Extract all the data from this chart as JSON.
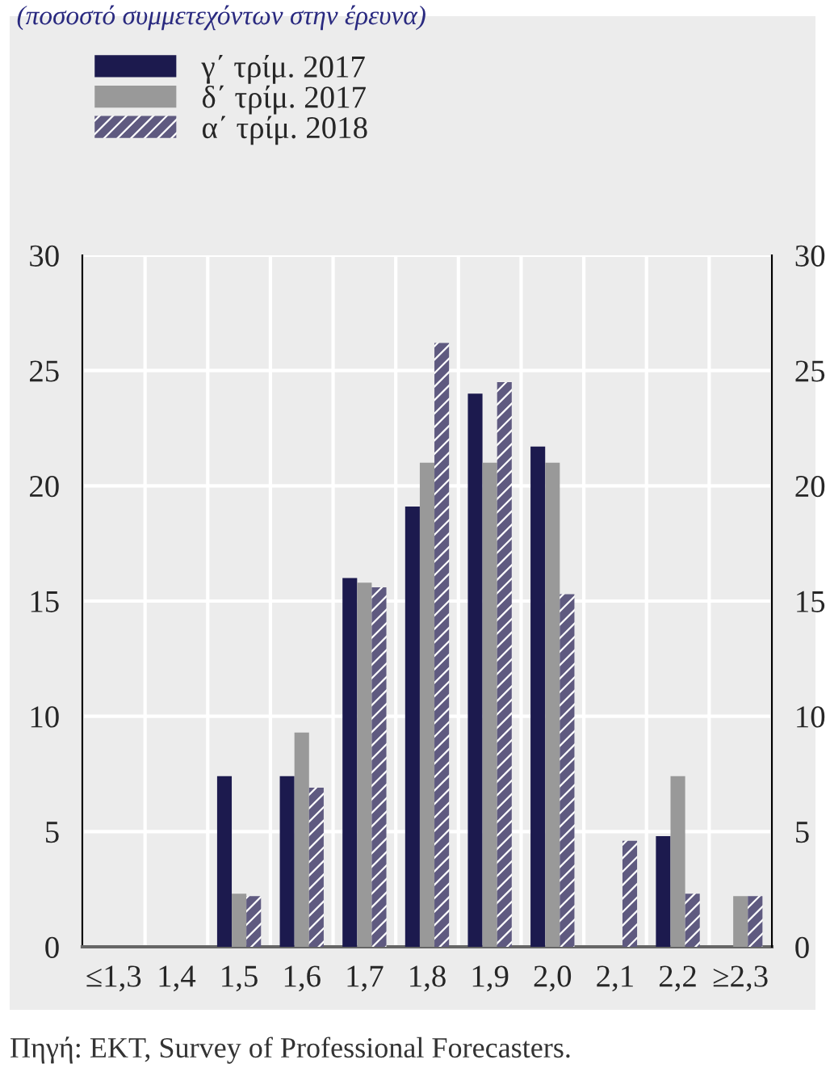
{
  "chart_data": {
    "type": "bar",
    "subtitle": "(ποσοστό συμμετεχόντων στην έρευνα)",
    "categories": [
      "≤1,3",
      "1,4",
      "1,5",
      "1,6",
      "1,7",
      "1,8",
      "1,9",
      "2,0",
      "2,1",
      "2,2",
      "≥2,3"
    ],
    "series": [
      {
        "name": "γ΄ τρίμ. 2017",
        "color": "#1c1a4e",
        "values": [
          0,
          0,
          7.4,
          7.4,
          16.0,
          19.1,
          24.0,
          21.7,
          0,
          4.8,
          0
        ]
      },
      {
        "name": "δ΄ τρίμ. 2017",
        "color": "#999999",
        "values": [
          0,
          0,
          2.3,
          9.3,
          15.8,
          21.0,
          21.0,
          21.0,
          0,
          7.4,
          2.2
        ]
      },
      {
        "name": "α΄ τρίμ. 2018",
        "color": "#5f5a80",
        "values": [
          0,
          0,
          2.2,
          6.9,
          15.6,
          26.2,
          24.5,
          15.3,
          4.6,
          2.3,
          2.2
        ]
      }
    ],
    "ylim": [
      0,
      30
    ],
    "yticks": [
      0,
      5,
      10,
      15,
      20,
      25,
      30
    ],
    "y2lim": [
      0,
      30
    ],
    "y2ticks": [
      0,
      5,
      10,
      15,
      20,
      25,
      30
    ],
    "grid": true,
    "legend": "top left",
    "annotations": [
      "Πηγή: EKT, Survey of Professional Forecasters."
    ]
  }
}
